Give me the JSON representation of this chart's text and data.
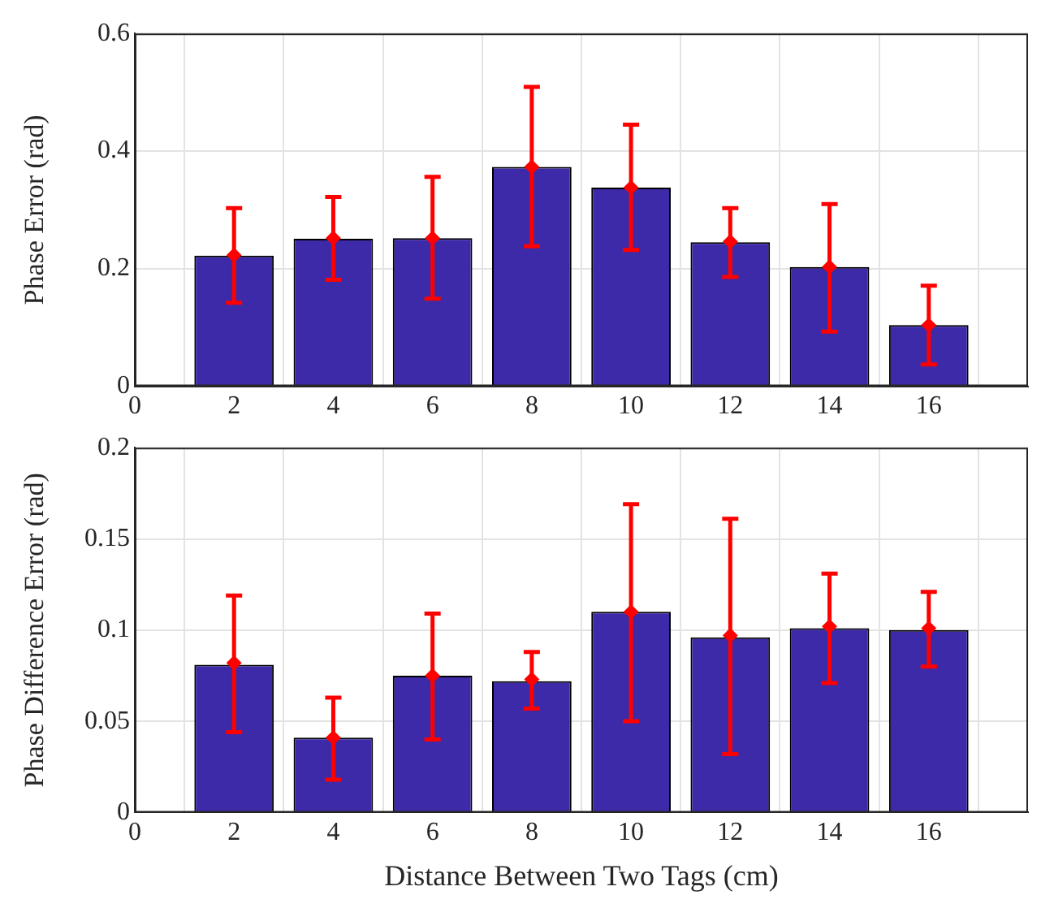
{
  "chart_data": [
    {
      "type": "bar",
      "ylabel": "Phase Error (rad)",
      "x": [
        2,
        4,
        6,
        8,
        10,
        12,
        14,
        16
      ],
      "marker": "diamond",
      "series": [
        {
          "color": "#3d2aa8",
          "values": [
            0.222,
            0.251,
            0.252,
            0.373,
            0.338,
            0.245,
            0.203,
            0.104
          ]
        },
        {
          "type": "scatter",
          "color": "#ff0000",
          "values": [
            0.223,
            0.252,
            0.252,
            0.373,
            0.338,
            0.246,
            0.203,
            0.104
          ],
          "errors": [
            [
              0.142,
              0.303
            ],
            [
              0.181,
              0.322
            ],
            [
              0.149,
              0.356
            ],
            [
              0.238,
              0.509
            ],
            [
              0.232,
              0.445
            ],
            [
              0.186,
              0.303
            ],
            [
              0.093,
              0.31
            ],
            [
              0.037,
              0.171
            ]
          ]
        }
      ],
      "xlim": [
        0,
        18
      ],
      "xticks": [
        0,
        2,
        4,
        6,
        8,
        10,
        12,
        14,
        16
      ],
      "ylim": [
        0,
        0.6
      ],
      "yticks": [
        0,
        0.2,
        0.4,
        0.6
      ],
      "grid": true,
      "legend": false
    },
    {
      "type": "bar",
      "ylabel": "Phase Difference Error (rad)",
      "xlabel": "Distance Between Two Tags (cm)",
      "x": [
        2,
        4,
        6,
        8,
        10,
        12,
        14,
        16
      ],
      "marker": "diamond",
      "series": [
        {
          "color": "#3d2aa8",
          "values": [
            0.081,
            0.041,
            0.075,
            0.072,
            0.11,
            0.096,
            0.101,
            0.1
          ]
        },
        {
          "type": "scatter",
          "color": "#ff0000",
          "values": [
            0.082,
            0.041,
            0.075,
            0.073,
            0.11,
            0.097,
            0.102,
            0.101
          ],
          "errors": [
            [
              0.044,
              0.119
            ],
            [
              0.018,
              0.063
            ],
            [
              0.04,
              0.109
            ],
            [
              0.057,
              0.088
            ],
            [
              0.05,
              0.169
            ],
            [
              0.032,
              0.161
            ],
            [
              0.071,
              0.131
            ],
            [
              0.08,
              0.121
            ]
          ]
        }
      ],
      "xlim": [
        0,
        18
      ],
      "xticks": [
        0,
        2,
        4,
        6,
        8,
        10,
        12,
        14,
        16
      ],
      "ylim": [
        0,
        0.2
      ],
      "yticks": [
        0,
        0.05,
        0.1,
        0.15,
        0.2
      ],
      "grid": true,
      "legend": false
    }
  ]
}
